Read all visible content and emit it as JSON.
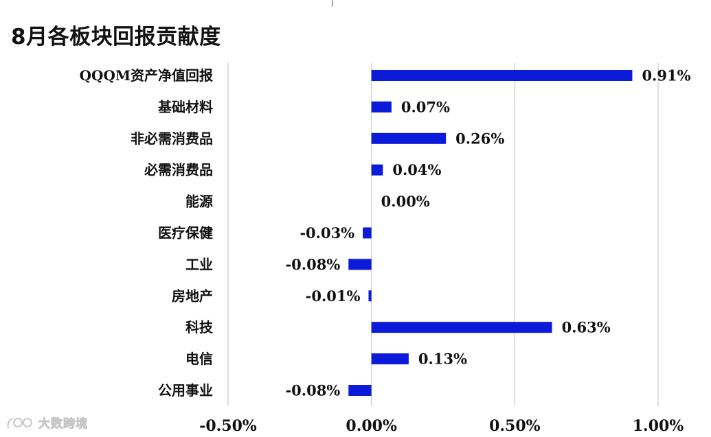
{
  "title": "8月各板块回报贡献度",
  "watermark": {
    "text": "大数跨境",
    "icon": "brand-logo-icon"
  },
  "colors": {
    "bar": "#0c1ad9",
    "grid": "#d4d4d4",
    "text": "#111111"
  },
  "chart_data": {
    "type": "bar",
    "orientation": "horizontal",
    "title": "8月各板块回报贡献度",
    "xlabel": "",
    "ylabel": "",
    "categories": [
      "QQQM资产净值回报",
      "基础材料",
      "非必需消费品",
      "必需消费品",
      "能源",
      "医疗保健",
      "工业",
      "房地产",
      "科技",
      "电信",
      "公用事业"
    ],
    "values": [
      0.91,
      0.07,
      0.26,
      0.04,
      0.0,
      -0.03,
      -0.08,
      -0.01,
      0.63,
      0.13,
      -0.08
    ],
    "data_labels": [
      "0.91%",
      "0.07%",
      "0.26%",
      "0.04%",
      "0.00%",
      "-0.03%",
      "-0.08%",
      "-0.01%",
      "0.63%",
      "0.13%",
      "-0.08%"
    ],
    "xlim": [
      -0.5,
      1.0
    ],
    "xticks": [
      -0.5,
      0.0,
      0.5,
      1.0
    ],
    "xtick_labels": [
      "-0.50%",
      "0.00%",
      "0.50%",
      "1.00%"
    ],
    "grid": "vertical",
    "legend": "none"
  }
}
